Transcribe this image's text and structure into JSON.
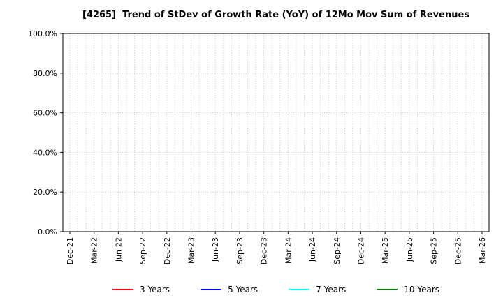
{
  "title": "[4265]  Trend of StDev of Growth Rate (YoY) of 12Mo Mov Sum of Revenues",
  "chart_data": {
    "type": "line",
    "title": "[4265]  Trend of StDev of Growth Rate (YoY) of 12Mo Mov Sum of Revenues",
    "xlabel": "",
    "ylabel": "",
    "ylim": [
      0,
      100
    ],
    "y_tick_step": 20,
    "y_tick_labels": [
      "0.0%",
      "20.0%",
      "40.0%",
      "60.0%",
      "80.0%",
      "100.0%"
    ],
    "x_tick_labels": [
      "Dec-21",
      "Mar-22",
      "Jun-22",
      "Sep-22",
      "Dec-22",
      "Mar-23",
      "Jun-23",
      "Sep-23",
      "Dec-23",
      "Mar-24",
      "Jun-24",
      "Sep-24",
      "Dec-24",
      "Mar-25",
      "Jun-25",
      "Sep-25",
      "Dec-25",
      "Mar-26"
    ],
    "grid": true,
    "grid_style": "dotted",
    "legend_position": "bottom",
    "series": [
      {
        "name": "3 Years",
        "color": "#ff0000",
        "values": []
      },
      {
        "name": "5 Years",
        "color": "#0000ff",
        "values": []
      },
      {
        "name": "7 Years",
        "color": "#00ffff",
        "values": []
      },
      {
        "name": "10 Years",
        "color": "#008000",
        "values": []
      }
    ]
  }
}
